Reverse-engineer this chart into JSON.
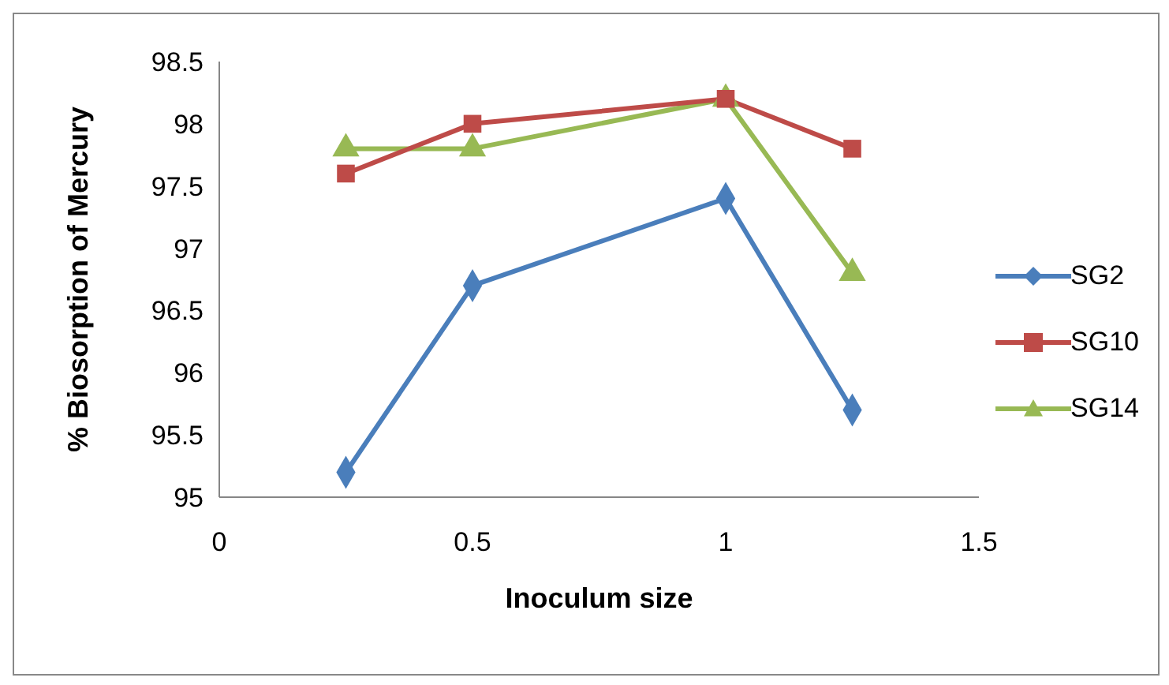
{
  "chart_data": {
    "type": "line",
    "xlabel": "Inoculum size",
    "ylabel": "% Biosorption of Mercury",
    "xlim": [
      0,
      1.5
    ],
    "xticks": [
      0,
      0.5,
      1,
      1.5
    ],
    "ylim": [
      95,
      98.5
    ],
    "yticks": [
      95,
      95.5,
      96,
      96.5,
      97,
      97.5,
      98,
      98.5
    ],
    "x": [
      0.25,
      0.5,
      1,
      1.25
    ],
    "grid": false,
    "legend": "right",
    "series": [
      {
        "name": "SG2",
        "color": "#4a7ebb",
        "marker": "diamond",
        "values": [
          95.2,
          96.7,
          97.4,
          95.7
        ]
      },
      {
        "name": "SG10",
        "color": "#be4b48",
        "marker": "square",
        "values": [
          97.6,
          98.0,
          98.2,
          97.8
        ]
      },
      {
        "name": "SG14",
        "color": "#98b954",
        "marker": "triangle",
        "values": [
          97.8,
          97.8,
          98.2,
          96.8
        ]
      }
    ]
  }
}
